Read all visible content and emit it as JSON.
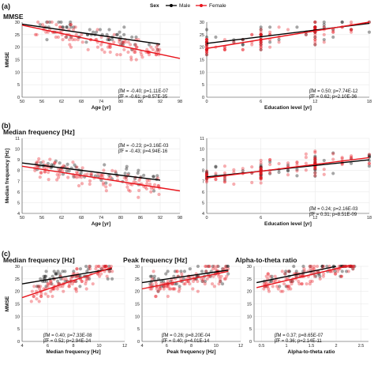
{
  "legend": {
    "title": "Sex",
    "items": [
      {
        "label": "Male",
        "color": "#000000"
      },
      {
        "label": "Female",
        "color": "#e8141c"
      }
    ]
  },
  "panel_labels": [
    "(a)",
    "(b)",
    "(c)"
  ],
  "chart_data": [
    {
      "type": "scatter",
      "panel": "(a)",
      "title": "MMSE",
      "xlabel": "Age [yr]",
      "ylabel": "MMSE",
      "xlim": [
        50,
        98
      ],
      "ylim": [
        0,
        30
      ],
      "xticks": [
        50,
        56,
        62,
        68,
        74,
        80,
        86,
        92,
        98
      ],
      "yticks": [
        0,
        5,
        10,
        15,
        20,
        25,
        30
      ],
      "series": [
        {
          "name": "Male",
          "fit": [
            [
              50,
              29.2
            ],
            [
              92,
              21.2
            ]
          ]
        },
        {
          "name": "Female",
          "fit": [
            [
              50,
              28.8
            ],
            [
              98,
              15.5
            ]
          ]
        }
      ],
      "stats": {
        "m_label": "β̂M",
        "m_value": "= -0.40; p=1.11E-07",
        "f_label": "β̂F",
        "f_value": "= -0.61; p=8.57E-35"
      }
    },
    {
      "type": "scatter",
      "panel": "(a)",
      "title": "",
      "xlabel": "Education level [yr]",
      "ylabel": "",
      "xlim": [
        0,
        18
      ],
      "ylim": [
        0,
        30
      ],
      "xticks": [
        0,
        6,
        12,
        18
      ],
      "yticks": [
        0,
        5,
        10,
        15,
        20,
        25,
        30
      ],
      "series": [
        {
          "name": "Male",
          "fit": [
            [
              0,
              21.5
            ],
            [
              18,
              29.5
            ]
          ]
        },
        {
          "name": "Female",
          "fit": [
            [
              0,
              19.5
            ],
            [
              18,
              30
            ]
          ]
        }
      ],
      "stats": {
        "m_label": "β̂M",
        "m_value": "= 0.50; p=7.74E-12",
        "f_label": "β̂F",
        "f_value": "= 0.62; p=2.10E-36"
      }
    },
    {
      "type": "scatter",
      "panel": "(b)",
      "title": "Median frequency [Hz]",
      "xlabel": "Age [yr]",
      "ylabel": "Median frequency [Hz]",
      "xlim": [
        50,
        98
      ],
      "ylim": [
        4,
        11
      ],
      "xticks": [
        50,
        56,
        62,
        68,
        74,
        80,
        86,
        92,
        98
      ],
      "yticks": [
        4,
        5,
        6,
        7,
        8,
        9,
        10,
        11
      ],
      "series": [
        {
          "name": "Male",
          "fit": [
            [
              50,
              8.7
            ],
            [
              92,
              7.1
            ]
          ]
        },
        {
          "name": "Female",
          "fit": [
            [
              50,
              8.4
            ],
            [
              98,
              6.1
            ]
          ]
        }
      ],
      "stats": {
        "m_label": "β̂M",
        "m_value": "= -0.23; p=3.16E-03",
        "f_label": "β̂F",
        "f_value": "= -0.43; p=4.94E-16"
      }
    },
    {
      "type": "scatter",
      "panel": "(b)",
      "title": "",
      "xlabel": "Education level [yr]",
      "ylabel": "",
      "xlim": [
        0,
        18
      ],
      "ylim": [
        4,
        11
      ],
      "xticks": [
        0,
        6,
        12,
        18
      ],
      "yticks": [
        4,
        5,
        6,
        7,
        8,
        9,
        10,
        11
      ],
      "series": [
        {
          "name": "Male",
          "fit": [
            [
              0,
              7.4
            ],
            [
              18,
              9.0
            ]
          ]
        },
        {
          "name": "Female",
          "fit": [
            [
              0,
              7.3
            ],
            [
              18,
              9.2
            ]
          ]
        }
      ],
      "stats": {
        "m_label": "β̂M",
        "m_value": "= 0.24; p=2.16E-03",
        "f_label": "β̂F",
        "f_value": "= 0.31; p=8.51E-09"
      }
    },
    {
      "type": "scatter",
      "panel": "(c)",
      "title": "Median frequency [Hz]",
      "xlabel": "Median frequency [Hz]",
      "ylabel": "MMSE",
      "xlim": [
        4,
        12
      ],
      "ylim": [
        0,
        30
      ],
      "xticks": [
        4,
        6,
        8,
        10,
        12
      ],
      "yticks": [
        0,
        5,
        10,
        15,
        20,
        25,
        30
      ],
      "series": [
        {
          "name": "Male",
          "fit": [
            [
              4,
              23.0
            ],
            [
              11,
              29.0
            ]
          ]
        },
        {
          "name": "Female",
          "fit": [
            [
              4,
              17.5
            ],
            [
              11,
              29.5
            ]
          ]
        }
      ],
      "stats": {
        "m_label": "β̂M",
        "m_value": "= 0.40; p=7.33E-08",
        "f_label": "β̂F",
        "f_value": "= 0.52; p=2.94E-24"
      }
    },
    {
      "type": "scatter",
      "panel": "(c)",
      "title": "Peak frequency [Hz]",
      "xlabel": "Peak frequency [Hz]",
      "ylabel": "",
      "xlim": [
        4,
        12
      ],
      "ylim": [
        0,
        30
      ],
      "xticks": [
        4,
        6,
        8,
        10,
        12
      ],
      "yticks": [
        0,
        5,
        10,
        15,
        20,
        25,
        30
      ],
      "series": [
        {
          "name": "Male",
          "fit": [
            [
              4,
              23.5
            ],
            [
              11,
              28.5
            ]
          ]
        },
        {
          "name": "Female",
          "fit": [
            [
              4,
              21.0
            ],
            [
              11,
              28.0
            ]
          ]
        }
      ],
      "stats": {
        "m_label": "β̂M",
        "m_value": "= 0.26; p=8.20E-04",
        "f_label": "β̂F",
        "f_value": "= 0.40; p=4.01E-14"
      }
    },
    {
      "type": "scatter",
      "panel": "(c)",
      "title": "Alpha-to-theta ratio",
      "xlabel": "Alpha-to-theta ratio",
      "ylabel": "",
      "xlim": [
        0.35,
        2.65
      ],
      "ylim": [
        0,
        30
      ],
      "xticks": [
        0.5,
        1,
        1.5,
        2,
        2.5
      ],
      "yticks": [
        0,
        5,
        10,
        15,
        20,
        25,
        30
      ],
      "series": [
        {
          "name": "Male",
          "fit": [
            [
              0.4,
              23.5
            ],
            [
              2.0,
              30.0
            ]
          ]
        },
        {
          "name": "Female",
          "fit": [
            [
              0.4,
              21.5
            ],
            [
              2.3,
              30.5
            ]
          ]
        }
      ],
      "stats": {
        "m_label": "β̂M",
        "m_value": "= 0.37; p=8.65E-07",
        "f_label": "β̂F",
        "f_value": "= 0.36; p=2.14E-11"
      }
    }
  ]
}
